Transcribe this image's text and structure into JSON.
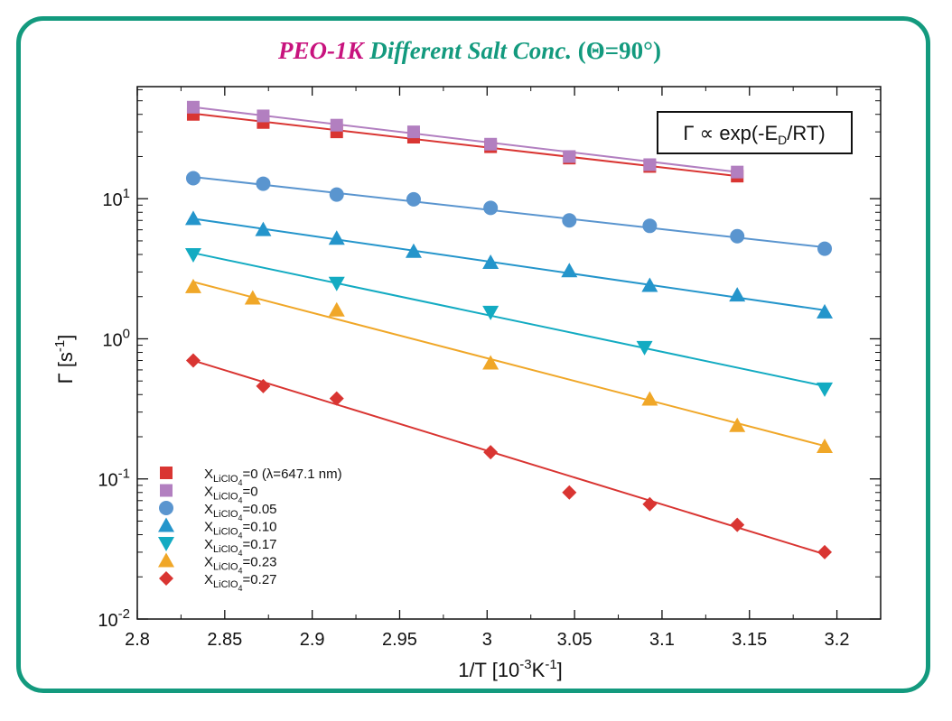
{
  "chart_data": {
    "type": "scatter",
    "title_parts": [
      {
        "text": "PEO-1K",
        "italic": true,
        "color": "#c8137e"
      },
      {
        "text": " Different Salt Conc.",
        "italic": true,
        "color": "#139a7e"
      },
      {
        "text": " (Θ=90°)",
        "italic": false,
        "color": "#139a7e"
      }
    ],
    "xlabel": "1/T [10",
    "xlabel_sup": "-3",
    "xlabel_mid": "K",
    "xlabel_sup2": "-1",
    "xlabel_end": "]",
    "ylabel": "Γ [s",
    "ylabel_sup": "-1",
    "ylabel_end": "]",
    "xlim": [
      2.8,
      3.225
    ],
    "ylim_log10": [
      -2,
      1.8
    ],
    "y_scale": "log",
    "x_ticks": [
      2.8,
      2.85,
      2.9,
      2.95,
      3.0,
      3.05,
      3.1,
      3.15,
      3.2
    ],
    "x_tick_labels": [
      "2.8",
      "2.85",
      "2.9",
      "2.95",
      "3",
      "3.05",
      "3.1",
      "3.15",
      "3.2"
    ],
    "y_tick_exponents": [
      -2,
      -1,
      0,
      1
    ],
    "y_tick_base": "10",
    "y_tick_sup_labels": [
      "-2",
      "-1",
      "0",
      "1"
    ],
    "annotation": {
      "text": "Γ ∝ exp(-E",
      "sub": "D",
      "end": "/RT)"
    },
    "legend_position": "bottom-left",
    "series": [
      {
        "label_main": "X",
        "label_sub": "LiClO",
        "label_sub2": "4",
        "label_value": "=0 (λ=647.1 nm)",
        "marker": "square",
        "color": "#d93532",
        "x": [
          2.832,
          2.872,
          2.914,
          2.958,
          3.002,
          3.047,
          3.093,
          3.143
        ],
        "y": [
          40,
          35,
          30,
          27.5,
          23.5,
          19.5,
          17,
          14.5
        ],
        "fit": [
          [
            2.832,
            40.5
          ],
          [
            3.143,
            14.5
          ]
        ]
      },
      {
        "label_main": "X",
        "label_sub": "LiClO",
        "label_sub2": "4",
        "label_value": "=0",
        "marker": "square",
        "color": "#b27fc0",
        "x": [
          2.832,
          2.872,
          2.914,
          2.958,
          3.002,
          3.047,
          3.093,
          3.143
        ],
        "y": [
          45,
          39,
          33.5,
          30,
          24.5,
          20,
          17.5,
          15.5
        ],
        "fit": [
          [
            2.832,
            45
          ],
          [
            3.143,
            15.5
          ]
        ]
      },
      {
        "label_main": "X",
        "label_sub": "LiClO",
        "label_sub2": "4",
        "label_value": "=0.05",
        "marker": "circle",
        "color": "#5a95cf",
        "x": [
          2.832,
          2.872,
          2.914,
          2.958,
          3.002,
          3.047,
          3.093,
          3.143,
          3.193
        ],
        "y": [
          14,
          12.8,
          10.7,
          9.9,
          8.6,
          7.0,
          6.4,
          5.4,
          4.4
        ],
        "fit": [
          [
            2.832,
            14.3
          ],
          [
            3.193,
            4.5
          ]
        ]
      },
      {
        "label_main": "X",
        "label_sub": "LiClO",
        "label_sub2": "4",
        "label_value": "=0.10",
        "marker": "triangle-up",
        "color": "#2495cb",
        "x": [
          2.832,
          2.872,
          2.914,
          2.958,
          3.002,
          3.047,
          3.093,
          3.143,
          3.193
        ],
        "y": [
          7.2,
          6.0,
          5.2,
          4.2,
          3.5,
          3.05,
          2.4,
          2.05,
          1.55
        ],
        "fit": [
          [
            2.832,
            7.2
          ],
          [
            3.193,
            1.6
          ]
        ]
      },
      {
        "label_main": "X",
        "label_sub": "LiClO",
        "label_sub2": "4",
        "label_value": "=0.17",
        "marker": "triangle-down",
        "color": "#13abc2",
        "x": [
          2.832,
          2.914,
          3.002,
          3.09,
          3.193
        ],
        "y": [
          4.0,
          2.5,
          1.55,
          0.87,
          0.44
        ],
        "fit": [
          [
            2.832,
            4.1
          ],
          [
            3.193,
            0.46
          ]
        ]
      },
      {
        "label_main": "X",
        "label_sub": "LiClO",
        "label_sub2": "4",
        "label_value": "=0.23",
        "marker": "triangle-up",
        "color": "#f0a728",
        "x": [
          2.832,
          2.866,
          2.914,
          3.002,
          3.093,
          3.143,
          3.193
        ],
        "y": [
          2.35,
          1.95,
          1.6,
          0.67,
          0.37,
          0.24,
          0.17
        ],
        "fit": [
          [
            2.832,
            2.55
          ],
          [
            3.193,
            0.172
          ]
        ]
      },
      {
        "label_main": "X",
        "label_sub": "LiClO",
        "label_sub2": "4",
        "label_value": "=0.27",
        "marker": "diamond",
        "color": "#d93532",
        "x": [
          2.832,
          2.872,
          2.914,
          3.002,
          3.047,
          3.093,
          3.143,
          3.193
        ],
        "y": [
          0.7,
          0.46,
          0.375,
          0.155,
          0.08,
          0.066,
          0.047,
          0.03
        ],
        "fit": [
          [
            2.832,
            0.7
          ],
          [
            3.193,
            0.029
          ]
        ]
      }
    ]
  }
}
